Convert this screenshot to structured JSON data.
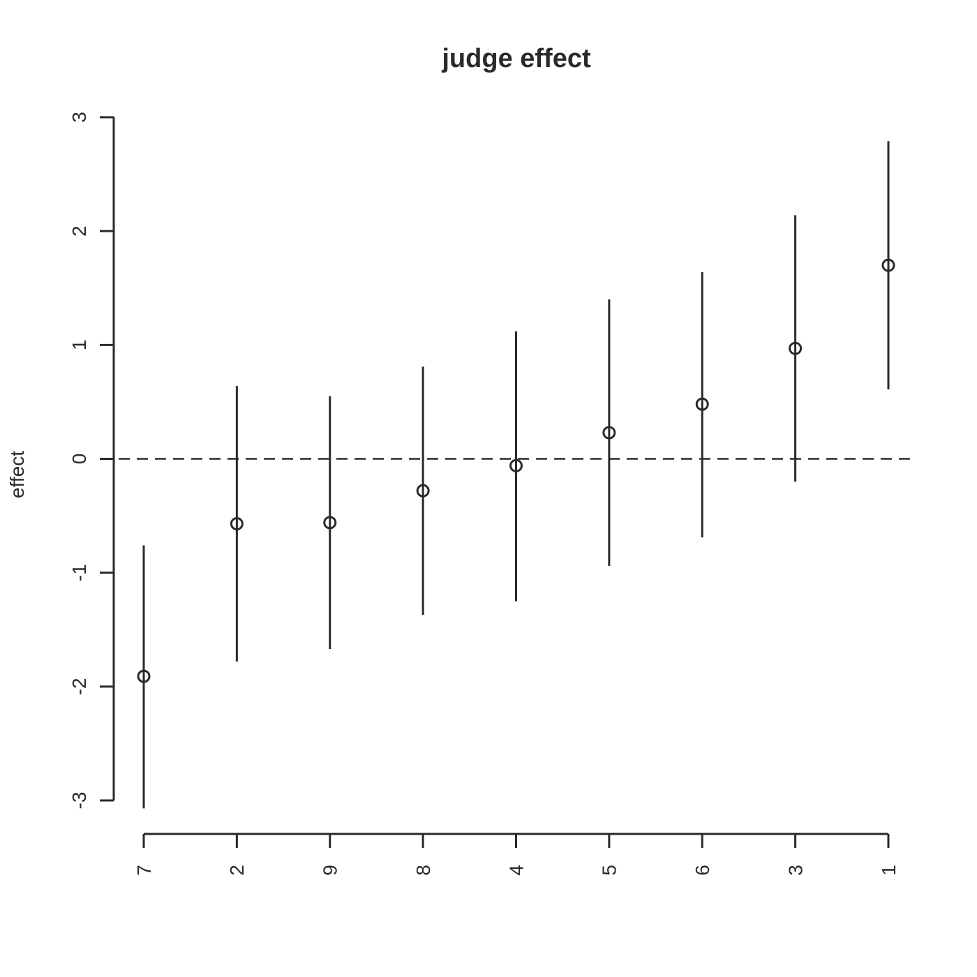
{
  "chart_data": {
    "type": "scatter",
    "title": "judge effect",
    "xlabel": "",
    "ylabel": "effect",
    "categories": [
      "7",
      "2",
      "9",
      "8",
      "4",
      "5",
      "6",
      "3",
      "1"
    ],
    "series": [
      {
        "values": [
          -1.91,
          -0.57,
          -0.56,
          -0.28,
          -0.06,
          0.23,
          0.48,
          0.97,
          1.7
        ],
        "lower": [
          -3.07,
          -1.78,
          -1.67,
          -1.37,
          -1.25,
          -0.94,
          -0.69,
          -0.2,
          0.61
        ],
        "upper": [
          -0.76,
          0.64,
          0.55,
          0.81,
          1.12,
          1.4,
          1.64,
          2.14,
          2.79
        ]
      }
    ],
    "yticks": [
      "-3",
      "-2",
      "-1",
      "0",
      "1",
      "2",
      "3"
    ],
    "ylim": [
      -3,
      3
    ],
    "reference_line": 0,
    "grid": false,
    "legend": "none"
  }
}
